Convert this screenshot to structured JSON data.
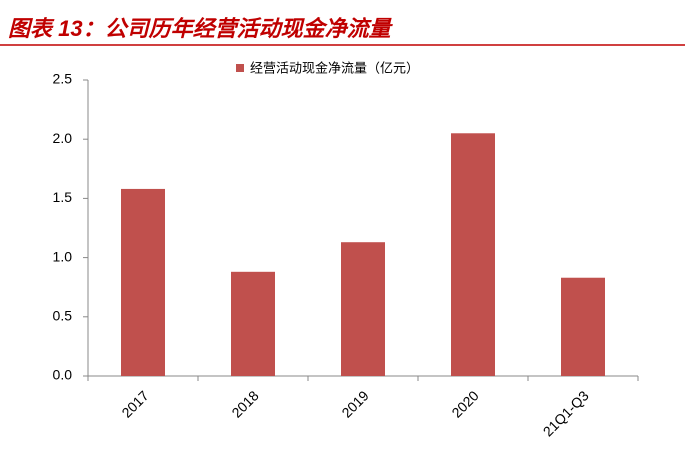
{
  "chart_data": {
    "type": "bar",
    "title": "图表 13：公司历年经营活动现金净流量",
    "categories": [
      "2017",
      "2018",
      "2019",
      "2020",
      "21Q1-Q3"
    ],
    "series": [
      {
        "name": "经营活动现金净流量（亿元）",
        "color": "#c0504d",
        "values": [
          1.58,
          0.88,
          1.13,
          2.05,
          0.83
        ]
      }
    ],
    "ylim": [
      0,
      2.5
    ],
    "yticks": [
      {
        "value": 0,
        "label": "0.0"
      },
      0.5,
      {
        "value": 1,
        "label": "1.0"
      },
      1.5,
      {
        "value": 2,
        "label": "2.0"
      },
      2.5
    ],
    "grid": false
  }
}
